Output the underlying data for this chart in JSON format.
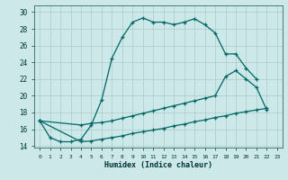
{
  "xlabel": "Humidex (Indice chaleur)",
  "background_color": "#cce8e8",
  "grid_color": "#aacccc",
  "line_color": "#006666",
  "xlim": [
    -0.5,
    23.5
  ],
  "ylim": [
    13.8,
    30.8
  ],
  "xticks": [
    0,
    1,
    2,
    3,
    4,
    5,
    6,
    7,
    8,
    9,
    10,
    11,
    12,
    13,
    14,
    15,
    16,
    17,
    18,
    19,
    20,
    21,
    22,
    23
  ],
  "yticks": [
    14,
    16,
    18,
    20,
    22,
    24,
    26,
    28,
    30
  ],
  "line1_x": [
    0,
    1,
    2,
    3,
    4,
    5,
    6,
    7,
    8,
    9,
    10,
    11,
    12,
    13,
    14,
    15,
    16,
    17,
    18,
    19,
    20,
    21
  ],
  "line1_y": [
    17.0,
    15.0,
    14.5,
    14.5,
    14.8,
    16.5,
    19.5,
    24.5,
    27.0,
    28.8,
    29.3,
    28.8,
    28.8,
    28.5,
    28.8,
    29.2,
    28.5,
    27.5,
    25.0,
    25.0,
    23.3,
    22.0
  ],
  "line2_x": [
    0,
    4,
    5,
    6,
    7,
    8,
    9,
    10,
    11,
    12,
    13,
    14,
    15,
    16,
    17,
    18,
    19,
    20,
    21,
    22
  ],
  "line2_y": [
    17.0,
    16.5,
    16.7,
    16.8,
    17.0,
    17.3,
    17.6,
    17.9,
    18.2,
    18.5,
    18.8,
    19.1,
    19.4,
    19.7,
    20.0,
    22.3,
    23.0,
    22.0,
    21.0,
    18.3
  ],
  "line3_x": [
    0,
    4,
    5,
    6,
    7,
    8,
    9,
    10,
    11,
    12,
    13,
    14,
    15,
    16,
    17,
    18,
    19,
    20,
    21,
    22
  ],
  "line3_y": [
    17.0,
    14.5,
    14.6,
    14.8,
    15.0,
    15.2,
    15.5,
    15.7,
    15.9,
    16.1,
    16.4,
    16.6,
    16.9,
    17.1,
    17.4,
    17.6,
    17.9,
    18.1,
    18.3,
    18.5
  ]
}
